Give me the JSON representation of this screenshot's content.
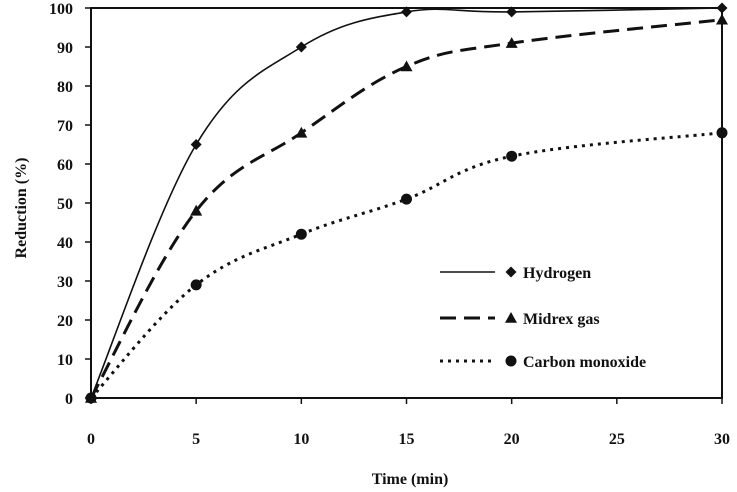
{
  "chart_data": {
    "type": "line",
    "xlabel": "Time (min)",
    "ylabel": "Reduction (%)",
    "xlim": [
      0,
      30
    ],
    "ylim": [
      0,
      100
    ],
    "x_ticks": [
      0,
      5,
      10,
      15,
      20,
      25,
      30
    ],
    "y_ticks": [
      0,
      10,
      20,
      30,
      40,
      50,
      60,
      70,
      80,
      90,
      100
    ],
    "grid": false,
    "legend_position": "lower-right",
    "series": [
      {
        "name": "Hydrogen",
        "marker": "diamond",
        "line_style": "solid",
        "color": "#111111",
        "x": [
          0,
          5,
          10,
          15,
          20,
          30
        ],
        "values": [
          0,
          65,
          90,
          99,
          99,
          100
        ]
      },
      {
        "name": "Midrex gas",
        "marker": "triangle",
        "line_style": "dashed",
        "color": "#111111",
        "x": [
          0,
          5,
          10,
          15,
          20,
          30
        ],
        "values": [
          0,
          48,
          68,
          85,
          91,
          97
        ]
      },
      {
        "name": "Carbon monoxide",
        "marker": "circle",
        "line_style": "dotted",
        "color": "#111111",
        "x": [
          0,
          5,
          10,
          15,
          20,
          30
        ],
        "values": [
          0,
          29,
          42,
          51,
          62,
          68
        ]
      }
    ]
  }
}
